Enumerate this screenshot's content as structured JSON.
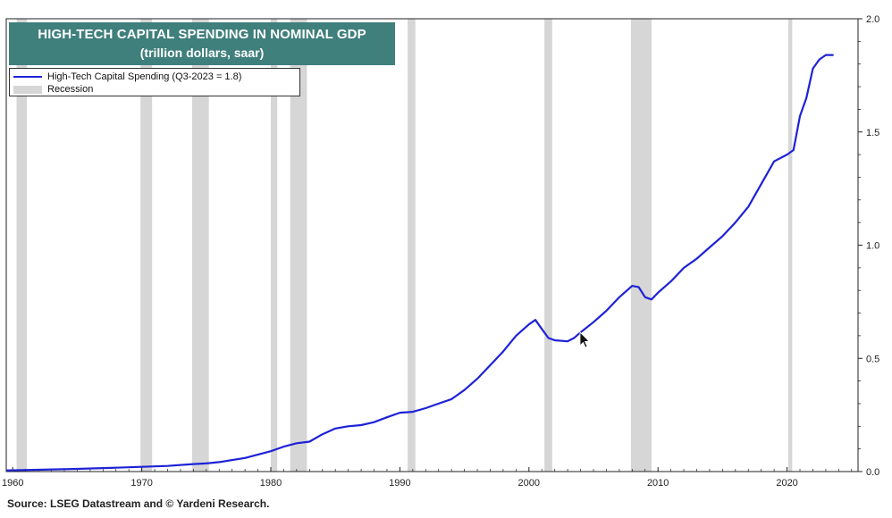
{
  "title": {
    "line1": "HIGH-TECH CAPITAL SPENDING IN NOMINAL GDP",
    "line2": "(trillion dollars, saar)"
  },
  "legend": {
    "series_label": "High-Tech Capital Spending (Q3-2023 = 1.8)",
    "recession_label": "Recession"
  },
  "source": "Source: LSEG Datastream and © Yardeni Research.",
  "chart_data": {
    "type": "line",
    "xlim": [
      1959.5,
      2025.5
    ],
    "ylim": [
      0,
      2.0
    ],
    "yticks": [
      0,
      0.5,
      1.0,
      1.5,
      2.0
    ],
    "ytick_labels": [
      "0.0",
      "0.5",
      "1.0",
      "1.5",
      "2.0"
    ],
    "xticks": [
      1960,
      1970,
      1980,
      1990,
      2000,
      2010,
      2020
    ],
    "xtick_labels": [
      "1960",
      "1970",
      "1980",
      "1990",
      "2000",
      "2010",
      "2020"
    ],
    "y_axis_side": "right",
    "line_color": "#1e22d6",
    "recession_color": "#d6d6d6",
    "recessions": [
      [
        1960.3,
        1961.1
      ],
      [
        1969.9,
        1970.8
      ],
      [
        1973.9,
        1975.2
      ],
      [
        1980.0,
        1980.5
      ],
      [
        1981.5,
        1982.8
      ],
      [
        1990.6,
        1991.2
      ],
      [
        2001.2,
        2001.8
      ],
      [
        2007.9,
        2009.5
      ],
      [
        2020.1,
        2020.4
      ]
    ],
    "series": [
      {
        "name": "High-Tech Capital Spending (Q3-2023 = 1.8)",
        "points": [
          [
            1959.5,
            0.005
          ],
          [
            1962,
            0.008
          ],
          [
            1965,
            0.012
          ],
          [
            1968,
            0.017
          ],
          [
            1970,
            0.021
          ],
          [
            1972,
            0.025
          ],
          [
            1974,
            0.033
          ],
          [
            1975,
            0.036
          ],
          [
            1976,
            0.042
          ],
          [
            1978,
            0.06
          ],
          [
            1980,
            0.09
          ],
          [
            1981,
            0.11
          ],
          [
            1982,
            0.125
          ],
          [
            1983,
            0.132
          ],
          [
            1984,
            0.165
          ],
          [
            1985,
            0.19
          ],
          [
            1986,
            0.2
          ],
          [
            1987,
            0.205
          ],
          [
            1988,
            0.218
          ],
          [
            1989,
            0.24
          ],
          [
            1990,
            0.26
          ],
          [
            1991,
            0.264
          ],
          [
            1992,
            0.28
          ],
          [
            1993,
            0.3
          ],
          [
            1994,
            0.32
          ],
          [
            1995,
            0.36
          ],
          [
            1996,
            0.41
          ],
          [
            1997,
            0.47
          ],
          [
            1998,
            0.53
          ],
          [
            1999,
            0.6
          ],
          [
            2000,
            0.65
          ],
          [
            2000.5,
            0.67
          ],
          [
            2001,
            0.63
          ],
          [
            2001.5,
            0.59
          ],
          [
            2002,
            0.58
          ],
          [
            2003,
            0.575
          ],
          [
            2003.5,
            0.59
          ],
          [
            2004,
            0.615
          ],
          [
            2005,
            0.66
          ],
          [
            2006,
            0.71
          ],
          [
            2007,
            0.77
          ],
          [
            2008,
            0.82
          ],
          [
            2008.5,
            0.815
          ],
          [
            2009,
            0.77
          ],
          [
            2009.5,
            0.76
          ],
          [
            2010,
            0.79
          ],
          [
            2011,
            0.84
          ],
          [
            2012,
            0.9
          ],
          [
            2013,
            0.94
          ],
          [
            2014,
            0.99
          ],
          [
            2015,
            1.04
          ],
          [
            2016,
            1.1
          ],
          [
            2017,
            1.17
          ],
          [
            2018,
            1.27
          ],
          [
            2019,
            1.37
          ],
          [
            2020,
            1.4
          ],
          [
            2020.5,
            1.42
          ],
          [
            2021,
            1.57
          ],
          [
            2021.5,
            1.65
          ],
          [
            2022,
            1.78
          ],
          [
            2022.5,
            1.82
          ],
          [
            2023,
            1.84
          ],
          [
            2023.6,
            1.84
          ]
        ]
      }
    ]
  }
}
